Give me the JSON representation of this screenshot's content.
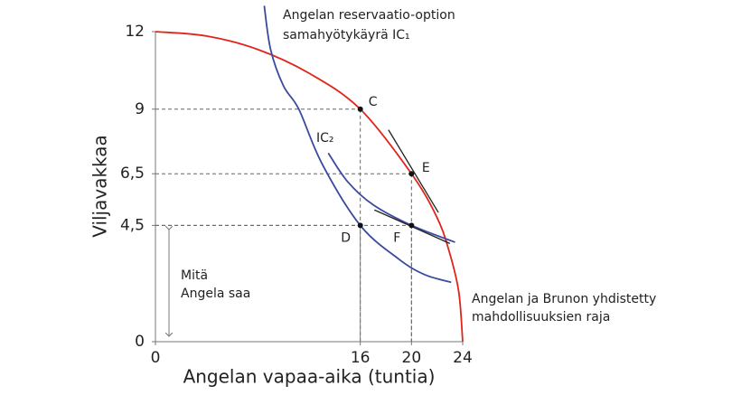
{
  "chart_data": {
    "type": "line",
    "y_label": "Viljavakkaa",
    "x_label": "Angelan vapaa-aika (tuntia)",
    "xlim": [
      0,
      24
    ],
    "ylim": [
      0,
      12
    ],
    "xticks": [
      0,
      16,
      20,
      24
    ],
    "yticks": [
      0,
      {
        "value": 4.5,
        "label": "4,5"
      },
      {
        "value": 6.5,
        "label": "6,5"
      },
      9,
      12
    ],
    "series": [
      {
        "color": "#e0251b",
        "x": [
          0,
          4,
          8,
          12,
          16,
          20,
          22,
          23,
          23.7,
          24
        ],
        "values": [
          12,
          11.83,
          11.31,
          10.39,
          9,
          6.5,
          4.8,
          3.4,
          1.9,
          0
        ]
      },
      {
        "color": "#3a4aa0",
        "x": [
          8.5,
          9,
          10,
          11.2,
          13,
          16,
          19,
          21,
          23.1
        ],
        "values": [
          13,
          11.3,
          9.9,
          9,
          6.9,
          4.5,
          3.2,
          2.6,
          2.3
        ]
      },
      {
        "color": "#3a4aa0",
        "x": [
          13.5,
          15,
          17,
          20,
          23.4
        ],
        "values": [
          7.3,
          6.2,
          5.3,
          4.5,
          3.85
        ]
      },
      {
        "color": "#222222",
        "x": [
          18.2,
          22.1
        ],
        "values": [
          8.2,
          5.0
        ]
      },
      {
        "color": "#222222",
        "x": [
          17.1,
          23.0
        ],
        "values": [
          5.1,
          3.8
        ]
      }
    ],
    "points": [
      {
        "label": "C",
        "x": 16,
        "y": 9
      },
      {
        "label": "E",
        "x": 20,
        "y": 6.5
      },
      {
        "label": "D",
        "x": 16,
        "y": 4.5
      },
      {
        "label": "F",
        "x": 20,
        "y": 4.5
      }
    ],
    "annotations": [
      "Angelan reservaatio-option",
      "samahyötykäyrä IC₁",
      "IC₂",
      "Mitä",
      "Angela saa",
      "Angelan ja Brunon yhdistetty",
      "mahdollisuuksien raja"
    ]
  }
}
